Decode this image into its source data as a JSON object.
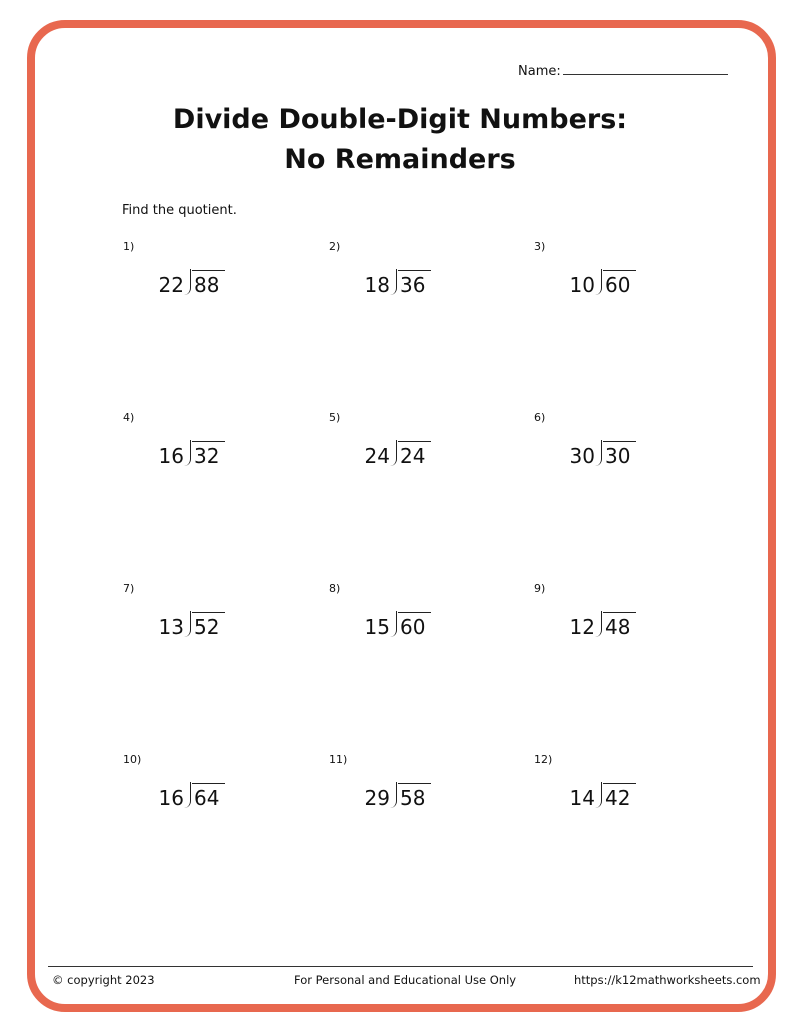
{
  "header": {
    "name_label": "Name:",
    "title_line1": "Divide Double-Digit Numbers:",
    "title_line2": "No Remainders"
  },
  "instructions": "Find the quotient.",
  "problems": [
    {
      "label": "1)",
      "divisor": "22",
      "dividend": "88"
    },
    {
      "label": "2)",
      "divisor": "18",
      "dividend": "36"
    },
    {
      "label": "3)",
      "divisor": "10",
      "dividend": "60"
    },
    {
      "label": "4)",
      "divisor": "16",
      "dividend": "32"
    },
    {
      "label": "5)",
      "divisor": "24",
      "dividend": "24"
    },
    {
      "label": "6)",
      "divisor": "30",
      "dividend": "30"
    },
    {
      "label": "7)",
      "divisor": "13",
      "dividend": "52"
    },
    {
      "label": "8)",
      "divisor": "15",
      "dividend": "60"
    },
    {
      "label": "9)",
      "divisor": "12",
      "dividend": "48"
    },
    {
      "label": "10)",
      "divisor": "16",
      "dividend": "64"
    },
    {
      "label": "11)",
      "divisor": "29",
      "dividend": "58"
    },
    {
      "label": "12)",
      "divisor": "14",
      "dividend": "42"
    }
  ],
  "footer": {
    "copyright": "© copyright 2023",
    "usage": "For Personal and Educational Use Only",
    "url": "https://k12mathworksheets.com"
  },
  "colors": {
    "border": "#e8684f"
  }
}
